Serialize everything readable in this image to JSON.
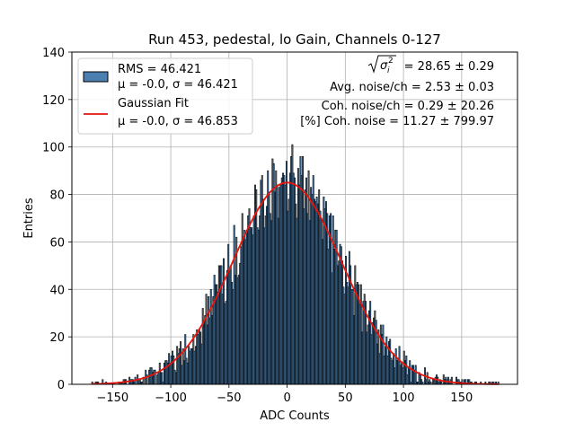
{
  "chart_data": {
    "type": "bar",
    "title": "Run 453, pedestal, lo Gain, Channels 0-127",
    "xlabel": "ADC Counts",
    "ylabel": "Entries",
    "xlim": [
      -185,
      198
    ],
    "ylim": [
      0,
      140
    ],
    "xticks": [
      -150,
      -100,
      -50,
      0,
      50,
      100,
      150
    ],
    "xtick_labels": [
      "−150",
      "−100",
      "−50",
      "0",
      "50",
      "100",
      "150"
    ],
    "yticks": [
      0,
      20,
      40,
      60,
      80,
      100,
      120,
      140
    ],
    "ytick_labels": [
      "0",
      "20",
      "40",
      "60",
      "80",
      "100",
      "120",
      "140"
    ],
    "grid": true,
    "legend_position": "top-left",
    "histogram": {
      "name": "RMS = 46.421",
      "name_line2": "μ = -0.0, σ = 46.421",
      "bin_range": [
        -168,
        182
      ],
      "bin_width": 1,
      "approx_peak": 99,
      "color": "#4a7fb0",
      "edge_color": "#000000"
    },
    "fit": {
      "name": "Gaussian Fit",
      "name_line2": "μ = -0.0, σ = 46.853",
      "mu": 0.0,
      "sigma": 46.853,
      "amplitude": 85,
      "color": "#e8140c"
    },
    "annotations": [
      {
        "id": "sigma",
        "prefix": "",
        "suffix": " = 28.65 ± 0.29"
      },
      {
        "id": "avg",
        "text": "Avg. noise/ch = 2.53 ± 0.03"
      },
      {
        "id": "coh",
        "text": "Coh. noise/ch = 0.29 ± 20.26"
      },
      {
        "id": "pct",
        "text": "[%] Coh. noise = 11.27 ± 799.97"
      }
    ]
  },
  "symbols": {
    "sigma_glyph": "σ",
    "sub_i": "i",
    "sup_2": "2"
  }
}
